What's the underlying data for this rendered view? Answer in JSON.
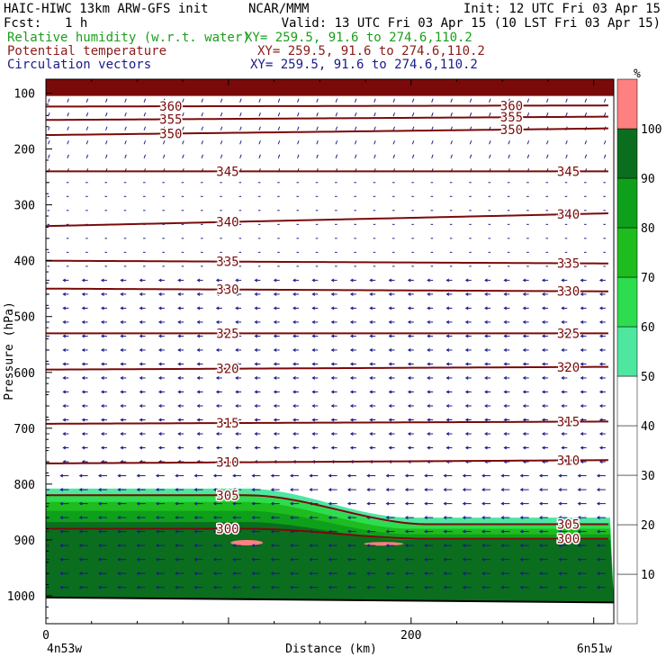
{
  "header": {
    "model_line": "HAIC-HIWC 13km ARW-GFS init",
    "center": "NCAR/MMM",
    "init": "Init: 12 UTC Fri 03 Apr 15",
    "fcst_label": "Fcst:",
    "fcst_value": "1 h",
    "valid": "Valid: 13 UTC Fri 03 Apr 15 (10 LST Fri 03 Apr 15)",
    "field1": "Relative humidity (w.r.t. water)",
    "field2": "Potential temperature",
    "field3": "Circulation vectors",
    "xy": "XY= 259.5, 91.6 to 274.6,110.2",
    "colors": {
      "field1": "#1a9e1a",
      "field2": "#8b1a1a",
      "field3": "#1a1a8b"
    }
  },
  "chart_data": {
    "type": "contour-cross-section",
    "xlabel": "Distance (km)",
    "ylabel": "Pressure (hPa)",
    "x_ticks": [
      0,
      200
    ],
    "x_range": [
      0,
      311
    ],
    "y_ticks": [
      100,
      200,
      300,
      400,
      500,
      600,
      700,
      800,
      900,
      1000
    ],
    "y_range": [
      75,
      1050
    ],
    "y_scale": "linear-inverted",
    "left_endpoint": "4n53w",
    "right_endpoint": "6n51w",
    "colorbar": {
      "unit": "%",
      "levels": [
        10,
        20,
        30,
        40,
        50,
        60,
        70,
        80,
        90,
        100
      ],
      "fill_colors": {
        "50-60": "#4fe6a0",
        "60-70": "#2edc4f",
        "70-80": "#1ebc1e",
        "80-90": "#0ea01a",
        "90-100": "#0a6e1e",
        "100+": "#ff8080"
      }
    },
    "theta_contours": [
      {
        "label": "360",
        "p": [
          124,
          122
        ]
      },
      {
        "label": "355",
        "p": [
          148,
          142
        ]
      },
      {
        "label": "350",
        "p": [
          175,
          163
        ]
      },
      {
        "label": "345",
        "p": [
          240,
          240
        ]
      },
      {
        "label": "340",
        "p": [
          338,
          315
        ]
      },
      {
        "label": "335",
        "p": [
          400,
          405
        ]
      },
      {
        "label": "330",
        "p": [
          450,
          455
        ]
      },
      {
        "label": "325",
        "p": [
          530,
          530
        ]
      },
      {
        "label": "320",
        "p": [
          595,
          590
        ]
      },
      {
        "label": "315",
        "p": [
          692,
          688
        ]
      },
      {
        "label": "310",
        "p": [
          763,
          757
        ]
      },
      {
        "label": "305",
        "p": [
          820,
          872
        ]
      },
      {
        "label": "300",
        "p": [
          880,
          898
        ]
      }
    ],
    "humidity_layers": [
      {
        "level": "50-60",
        "top_left": 808,
        "top_right": 860
      },
      {
        "level": "60-70",
        "top_left": 818,
        "top_right": 870
      },
      {
        "level": "70-80",
        "top_left": 832,
        "top_right": 880
      },
      {
        "level": "80-90",
        "top_left": 848,
        "top_right": 890
      },
      {
        "level": "90-100",
        "top_left": 868,
        "top_right": 900
      }
    ],
    "upper_saturated_layer": {
      "top": 75,
      "bottom": 105
    },
    "surface_pressure": {
      "left": 1003,
      "right": 1012
    }
  }
}
